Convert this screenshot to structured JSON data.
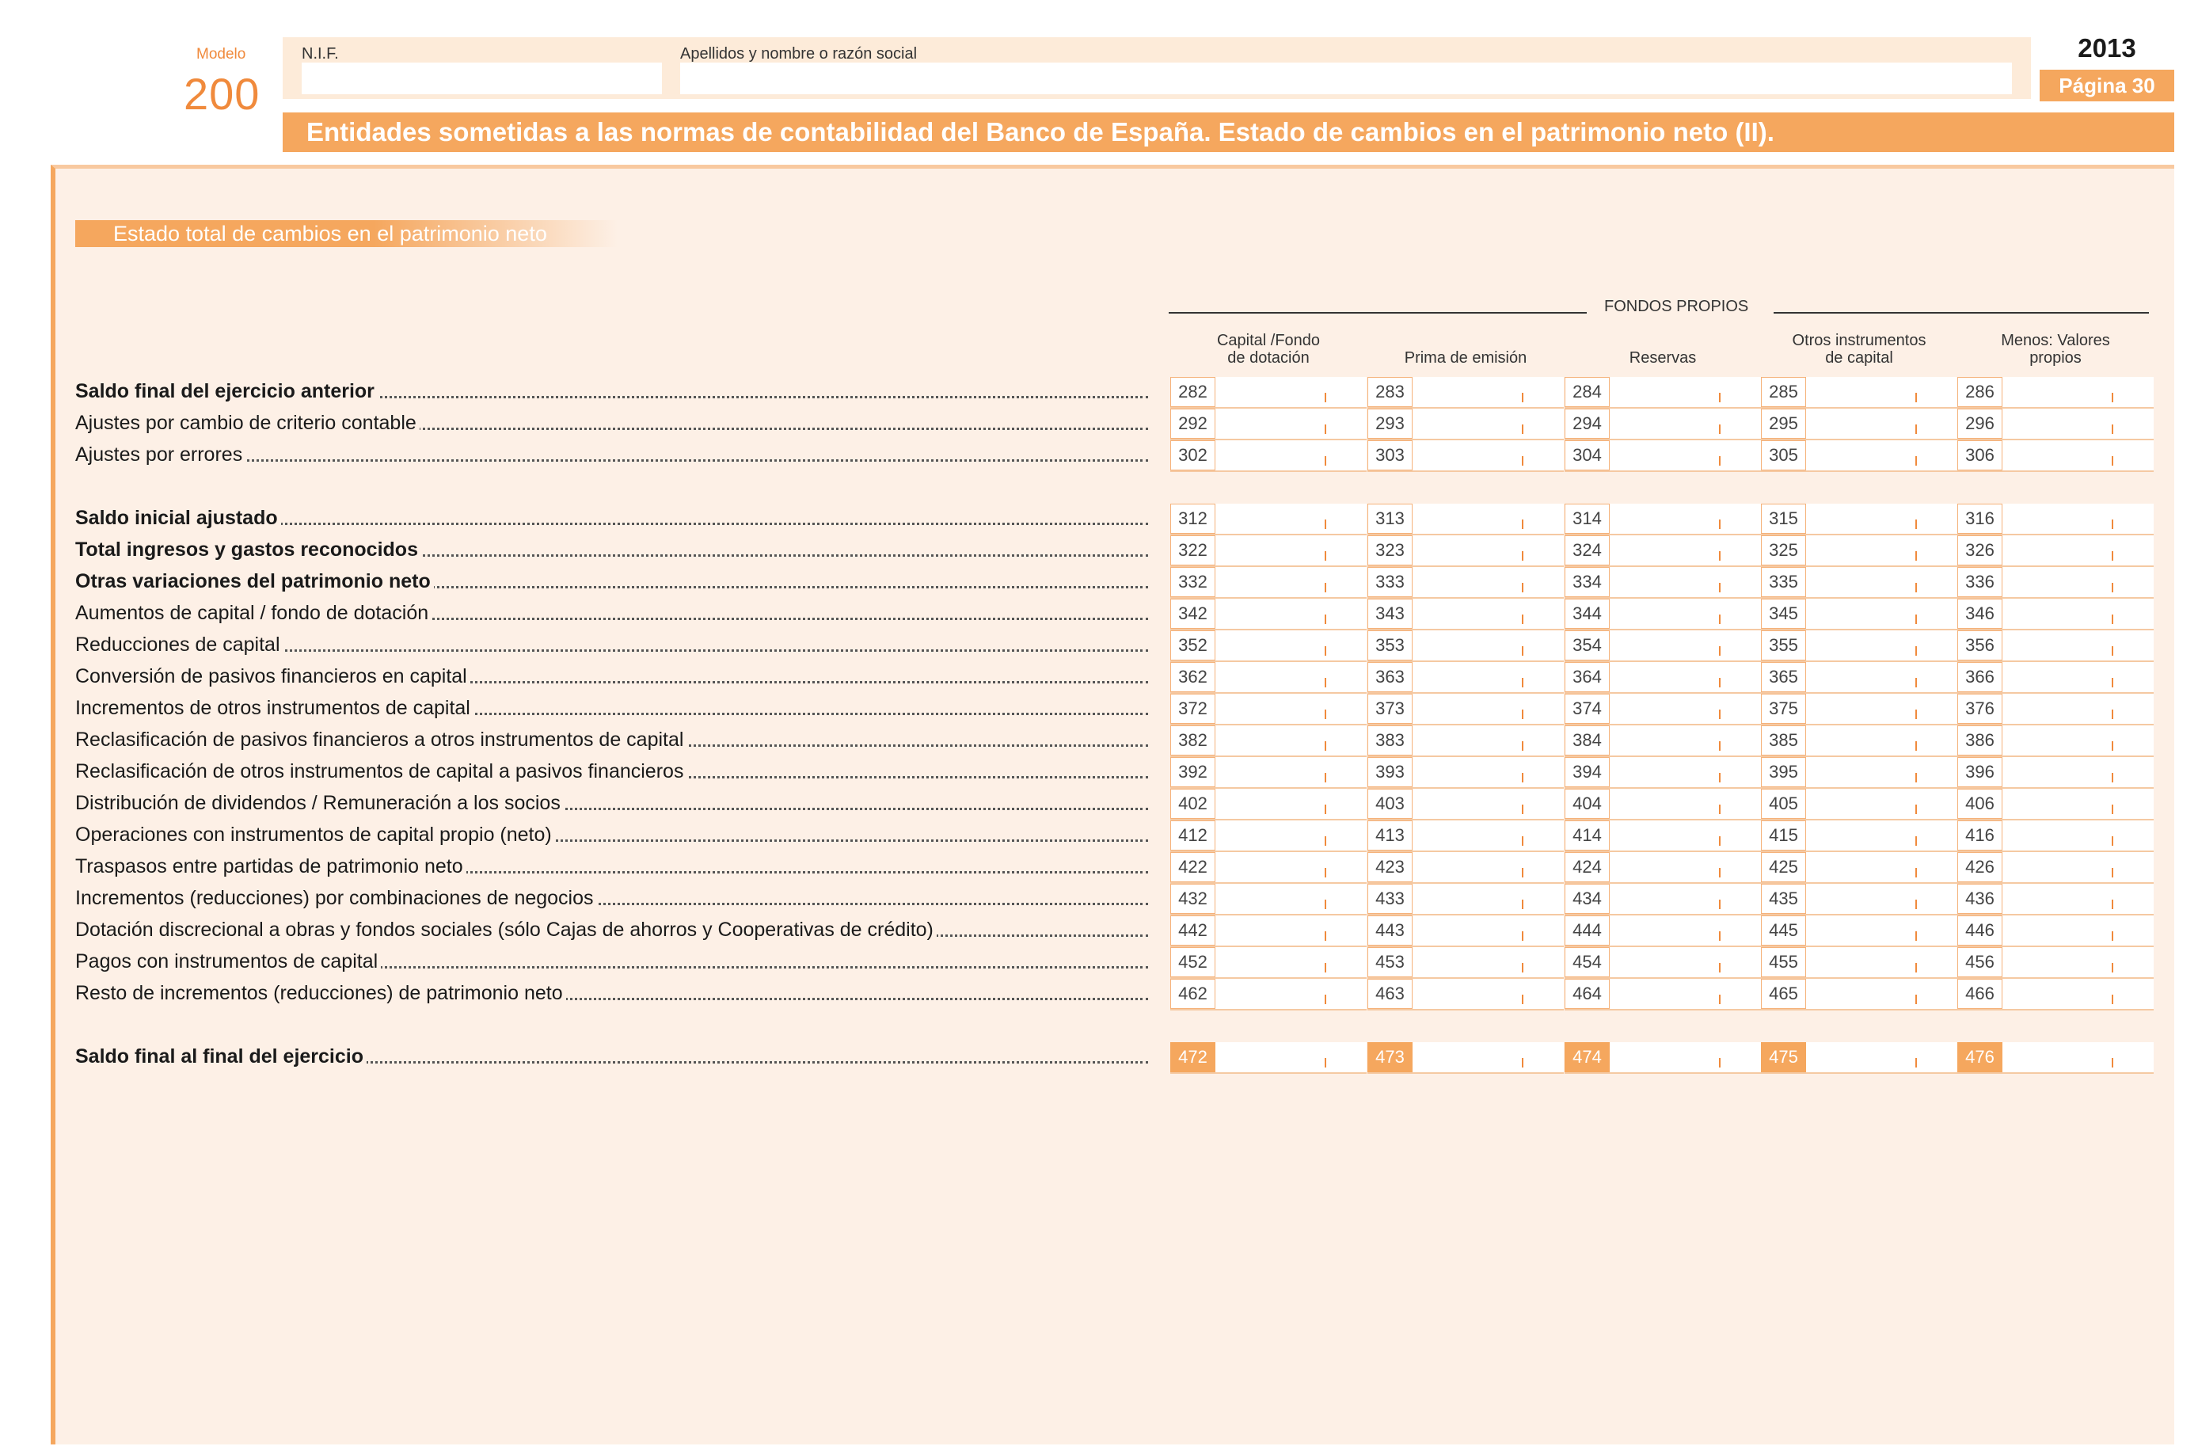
{
  "header": {
    "modelo_label": "Modelo",
    "modelo_number": "200",
    "nif_label": "N.I.F.",
    "name_label": "Apellidos y nombre o razón social",
    "year": "2013",
    "page": "Página 30",
    "title": "Entidades sometidas a las normas de contabilidad del Banco de España. Estado de cambios en el patrimonio neto (II)."
  },
  "section": {
    "title": "Estado total de cambios en el patrimonio neto"
  },
  "table": {
    "group_title": "FONDOS PROPIOS",
    "columns": [
      "Capital /Fondo\nde dotación",
      "Prima de emisión",
      "Reservas",
      "Otros instrumentos\nde capital",
      "Menos: Valores\npropios"
    ],
    "rows": [
      {
        "label": "Saldo final del ejercicio anterior",
        "bold": true,
        "codes": [
          "282",
          "283",
          "284",
          "285",
          "286"
        ]
      },
      {
        "label": "Ajustes por cambio de criterio contable",
        "bold": false,
        "codes": [
          "292",
          "293",
          "294",
          "295",
          "296"
        ]
      },
      {
        "label": "Ajustes por errores",
        "bold": false,
        "codes": [
          "302",
          "303",
          "304",
          "305",
          "306"
        ]
      },
      {
        "label": "Saldo inicial ajustado",
        "bold": true,
        "codes": [
          "312",
          "313",
          "314",
          "315",
          "316"
        ]
      },
      {
        "label": "Total ingresos y gastos reconocidos",
        "bold": true,
        "codes": [
          "322",
          "323",
          "324",
          "325",
          "326"
        ]
      },
      {
        "label": "Otras variaciones del patrimonio neto",
        "bold": true,
        "codes": [
          "332",
          "333",
          "334",
          "335",
          "336"
        ]
      },
      {
        "label": "Aumentos de capital / fondo de dotación",
        "bold": false,
        "codes": [
          "342",
          "343",
          "344",
          "345",
          "346"
        ]
      },
      {
        "label": "Reducciones de capital",
        "bold": false,
        "codes": [
          "352",
          "353",
          "354",
          "355",
          "356"
        ]
      },
      {
        "label": "Conversión de pasivos financieros en capital",
        "bold": false,
        "codes": [
          "362",
          "363",
          "364",
          "365",
          "366"
        ]
      },
      {
        "label": "Incrementos de otros instrumentos de capital",
        "bold": false,
        "codes": [
          "372",
          "373",
          "374",
          "375",
          "376"
        ]
      },
      {
        "label": "Reclasificación de pasivos financieros a otros instrumentos de capital",
        "bold": false,
        "codes": [
          "382",
          "383",
          "384",
          "385",
          "386"
        ]
      },
      {
        "label": "Reclasificación de otros instrumentos de capital a pasivos financieros",
        "bold": false,
        "codes": [
          "392",
          "393",
          "394",
          "395",
          "396"
        ]
      },
      {
        "label": "Distribución de dividendos / Remuneración a los socios",
        "bold": false,
        "codes": [
          "402",
          "403",
          "404",
          "405",
          "406"
        ]
      },
      {
        "label": "Operaciones con instrumentos de capital propio (neto)",
        "bold": false,
        "codes": [
          "412",
          "413",
          "414",
          "415",
          "416"
        ]
      },
      {
        "label": "Traspasos entre partidas de patrimonio neto",
        "bold": false,
        "codes": [
          "422",
          "423",
          "424",
          "425",
          "426"
        ]
      },
      {
        "label": "Incrementos (reducciones) por combinaciones de negocios",
        "bold": false,
        "codes": [
          "432",
          "433",
          "434",
          "435",
          "436"
        ]
      },
      {
        "label": "Dotación discrecional a obras y fondos sociales (sólo Cajas de ahorros y Cooperativas de crédito)",
        "bold": false,
        "codes": [
          "442",
          "443",
          "444",
          "445",
          "446"
        ]
      },
      {
        "label": "Pagos con instrumentos de capital",
        "bold": false,
        "codes": [
          "452",
          "453",
          "454",
          "455",
          "456"
        ]
      },
      {
        "label": "Resto de incrementos (reducciones) de patrimonio neto",
        "bold": false,
        "codes": [
          "462",
          "463",
          "464",
          "465",
          "466"
        ]
      },
      {
        "label": "Saldo final al final del ejercicio",
        "bold": true,
        "total": true,
        "codes": [
          "472",
          "473",
          "474",
          "475",
          "476"
        ]
      }
    ]
  }
}
